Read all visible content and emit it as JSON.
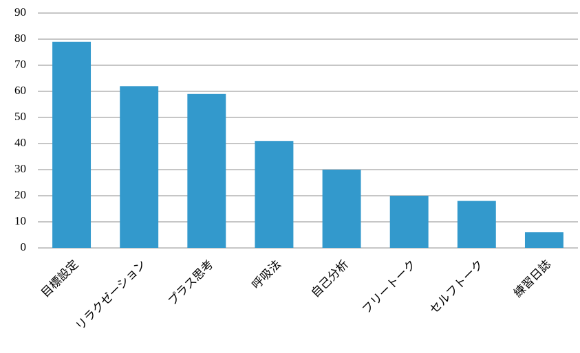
{
  "chart_data": {
    "type": "bar",
    "categories": [
      "目標設定",
      "リラクゼーション",
      "プラス思考",
      "呼吸法",
      "自己分析",
      "フリートーク",
      "セルフトーク",
      "練習日誌"
    ],
    "values": [
      79,
      62,
      59,
      41,
      30,
      20,
      18,
      6
    ],
    "color": "#3399cc",
    "ylim": [
      0,
      90
    ],
    "yticks": [
      0,
      10,
      20,
      30,
      40,
      50,
      60,
      70,
      80,
      90
    ],
    "grid": true
  }
}
